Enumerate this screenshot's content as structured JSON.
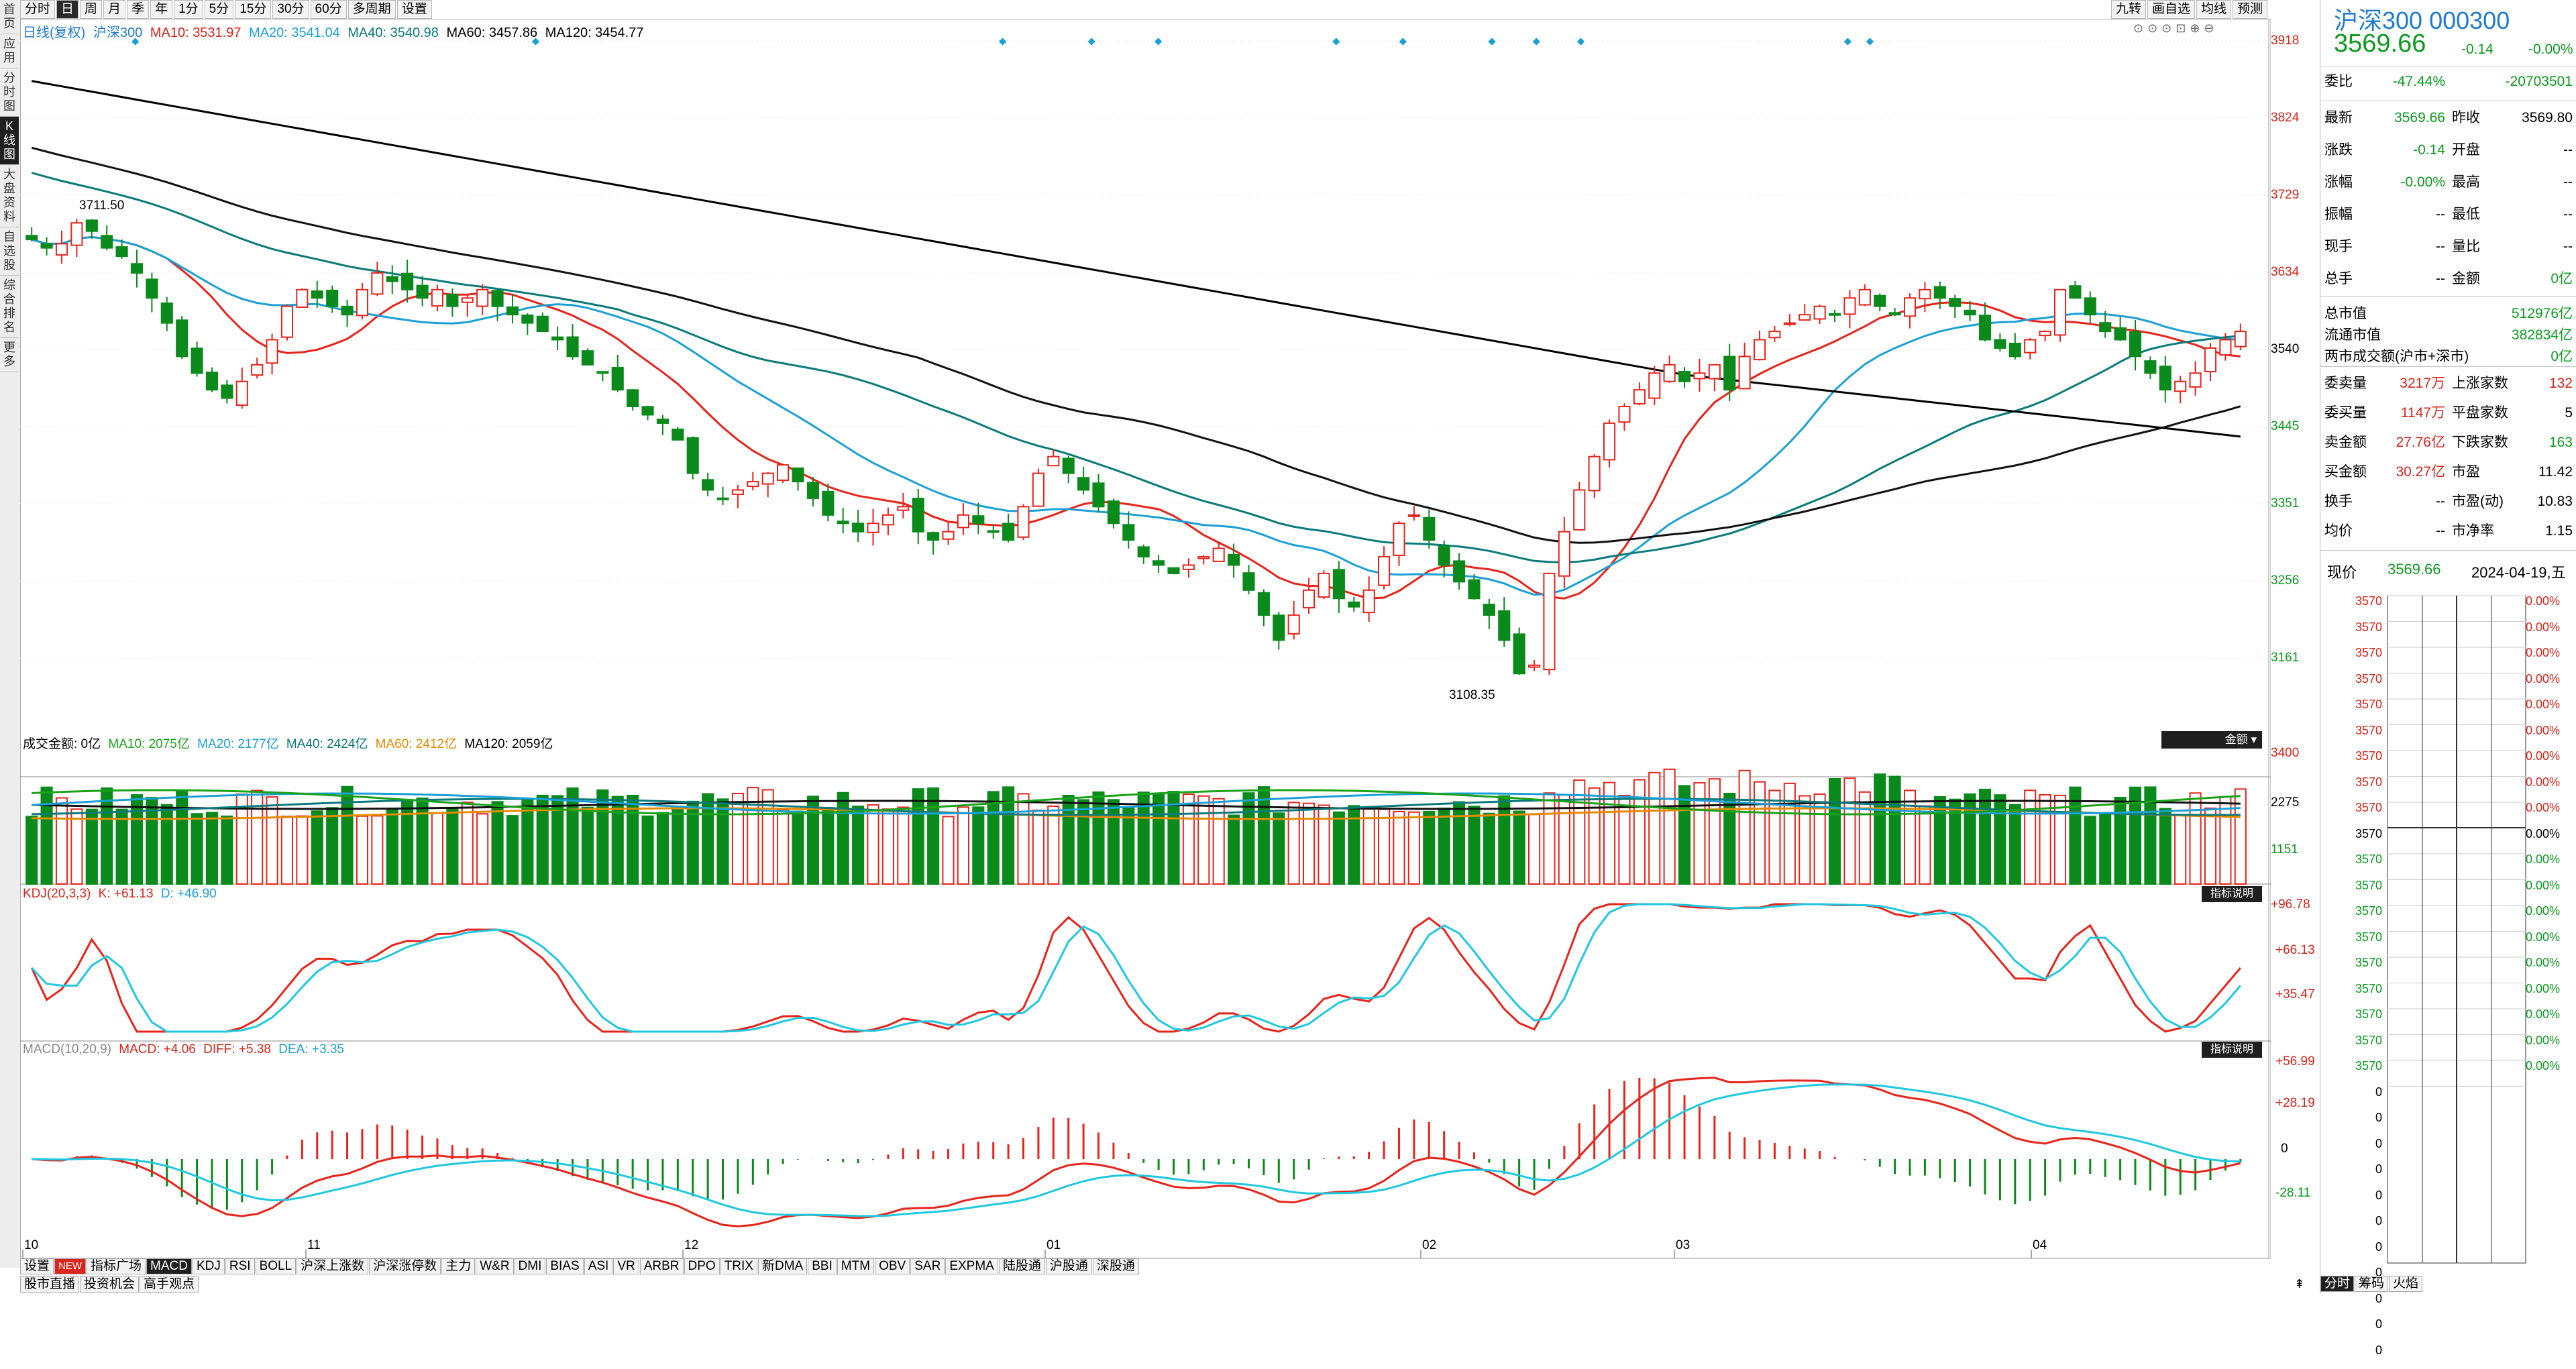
{
  "sidebar": [
    "首页",
    "应用",
    "分时图",
    "K线图",
    "大盘资料",
    "自选股",
    "综合排名",
    "更多"
  ],
  "toolbar": {
    "buttons": [
      "分时",
      "日",
      "周",
      "月",
      "季",
      "年",
      "1分",
      "5分",
      "15分",
      "30分",
      "60分",
      "多周期",
      "设置"
    ],
    "active": "日",
    "right_buttons": [
      "九转",
      "画自选",
      "均线",
      "预测"
    ]
  },
  "ma_legend": {
    "title": "日线(复权)",
    "index": "沪深300",
    "ma10": "MA10: 3531.97",
    "ma20": "MA20: 3541.04",
    "ma40": "MA40: 3540.98",
    "ma60": "MA60: 3457.86",
    "ma120": "MA120: 3454.77"
  },
  "price_axis": [
    "3918",
    "3824",
    "3729",
    "3634",
    "3540",
    "3445",
    "3351",
    "3256",
    "3161"
  ],
  "annotations": {
    "high": "3711.50",
    "low": "3108.35"
  },
  "volume": {
    "legend_title": "成交金额: 0亿",
    "ma10": "MA10: 2075亿",
    "ma20": "MA20: 2177亿",
    "ma40": "MA40: 2424亿",
    "ma60": "MA60: 2412亿",
    "ma120": "MA120: 2059亿",
    "button": "金额",
    "axis": [
      "3400",
      "2275",
      "1151"
    ]
  },
  "kdj": {
    "title": "KDJ(20,3,3)",
    "k": "K: +61.13",
    "d": "D: +46.90",
    "axis": [
      "+96.78",
      "+66.13",
      "+35.47"
    ],
    "button": "指标说明"
  },
  "macd": {
    "title": "MACD(10,20,9)",
    "macd": "MACD: +4.06",
    "diff": "DIFF: +5.38",
    "dea": "DEA: +3.35",
    "axis": [
      "+56.99",
      "+28.19",
      "0",
      "-28.11"
    ],
    "button": "指标说明"
  },
  "months": [
    "10",
    "11",
    "12",
    "01",
    "02",
    "03",
    "04"
  ],
  "bottom_tabs": [
    "设置",
    "NEW",
    "指标广场",
    "MACD",
    "KDJ",
    "RSI",
    "BOLL",
    "沪深上涨数",
    "沪深涨停数",
    "主力",
    "W&R",
    "DMI",
    "BIAS",
    "ASI",
    "VR",
    "ARBR",
    "DPO",
    "TRIX",
    "新DMA",
    "BBI",
    "MTM",
    "OBV",
    "SAR",
    "EXPMA",
    "陆股通",
    "沪股通",
    "深股通"
  ],
  "bottom_tabs_active": "MACD",
  "bottom_tabs2": [
    "股市直播",
    "投资机会",
    "高手观点"
  ],
  "quote": {
    "name": "沪深300",
    "code": "000300",
    "price": "3569.66",
    "change": "-0.14",
    "pct": "-0.00%",
    "rows1": [
      {
        "k": "委比",
        "v": "-47.44%",
        "v2": "-20703501"
      }
    ],
    "rows2": [
      {
        "k": "最新",
        "v": "3569.66",
        "k2": "昨收",
        "v2": "3569.80"
      },
      {
        "k": "涨跌",
        "v": "-0.14",
        "k2": "开盘",
        "v2": "--"
      },
      {
        "k": "涨幅",
        "v": "-0.00%",
        "k2": "最高",
        "v2": "--"
      },
      {
        "k": "振幅",
        "v": "--",
        "k2": "最低",
        "v2": "--"
      },
      {
        "k": "现手",
        "v": "--",
        "k2": "量比",
        "v2": "--"
      },
      {
        "k": "总手",
        "v": "--",
        "k2": "金额",
        "v2": "0亿"
      }
    ],
    "rows3": [
      {
        "k": "总市值",
        "v2": "512976亿"
      },
      {
        "k": "流通市值",
        "v2": "382834亿"
      },
      {
        "k": "两市成交额(沪市+深市)",
        "v2": "0亿"
      }
    ],
    "rows4": [
      {
        "k": "委卖量",
        "v": "3217万",
        "k2": "上涨家数",
        "v2": "132"
      },
      {
        "k": "委买量",
        "v": "1147万",
        "k2": "平盘家数",
        "v2": "5"
      },
      {
        "k": "卖金额",
        "v": "27.76亿",
        "k2": "下跌家数",
        "v2": "163"
      },
      {
        "k": "买金额",
        "v": "30.27亿",
        "k2": "市盈",
        "v2": "11.42"
      },
      {
        "k": "换手",
        "v": "--",
        "k2": "市盈(动)",
        "v2": "10.83"
      },
      {
        "k": "均价",
        "v": "--",
        "k2": "市净率",
        "v2": "1.15"
      }
    ],
    "now_label": "现价",
    "now_price": "3569.66",
    "date": "2024-04-19,五",
    "mini_left": [
      "3570",
      "3570",
      "3570",
      "3570",
      "3570",
      "3570",
      "3570",
      "3570",
      "3570",
      "3570",
      "3570",
      "3570",
      "3570",
      "3570",
      "3570",
      "3570",
      "3570",
      "3570",
      "3570",
      "0",
      "0",
      "0",
      "0",
      "0",
      "0",
      "0",
      "0",
      "0",
      "0",
      "0"
    ],
    "mini_right": [
      "0.00%",
      "0.00%",
      "0.00%",
      "0.00%",
      "0.00%",
      "0.00%",
      "0.00%",
      "0.00%",
      "0.00%",
      "0.00%",
      "0.00%",
      "0.00%",
      "0.00%",
      "0.00%",
      "0.00%",
      "0.00%",
      "0.00%",
      "0.00%",
      "0.00%"
    ],
    "bottom_tabs": [
      "分时",
      "筹码",
      "火焰"
    ]
  },
  "chart_data": {
    "type": "candlestick",
    "price_range": [
      3108.35,
      3711.5
    ],
    "candles_close_approx": [
      3680,
      3670,
      3675,
      3700,
      3690,
      3670,
      3660,
      3640,
      3610,
      3580,
      3540,
      3520,
      3500,
      3490,
      3510,
      3530,
      3560,
      3600,
      3620,
      3610,
      3600,
      3590,
      3620,
      3640,
      3630,
      3620,
      3610,
      3620,
      3600,
      3610,
      3620,
      3600,
      3590,
      3580,
      3570,
      3560,
      3540,
      3530,
      3520,
      3500,
      3480,
      3470,
      3460,
      3440,
      3400,
      3380,
      3370,
      3380,
      3390,
      3400,
      3410,
      3390,
      3370,
      3350,
      3340,
      3330,
      3340,
      3350,
      3360,
      3330,
      3320,
      3330,
      3350,
      3340,
      3330,
      3320,
      3360,
      3400,
      3420,
      3400,
      3380,
      3360,
      3340,
      3320,
      3300,
      3290,
      3280,
      3290,
      3300,
      3310,
      3290,
      3260,
      3230,
      3200,
      3230,
      3260,
      3280,
      3250,
      3240,
      3260,
      3300,
      3340,
      3350,
      3320,
      3290,
      3270,
      3250,
      3230,
      3200,
      3160,
      3170,
      3280,
      3330,
      3380,
      3420,
      3460,
      3480,
      3500,
      3520,
      3530,
      3510,
      3520,
      3530,
      3500,
      3540,
      3560,
      3570,
      3580,
      3590,
      3600,
      3590,
      3610,
      3620,
      3600,
      3590,
      3610,
      3620,
      3610,
      3600,
      3590,
      3560,
      3550,
      3540,
      3560,
      3570,
      3620,
      3610,
      3590,
      3570,
      3560,
      3540,
      3520,
      3500,
      3510,
      3520,
      3550,
      3560,
      3570
    ]
  }
}
